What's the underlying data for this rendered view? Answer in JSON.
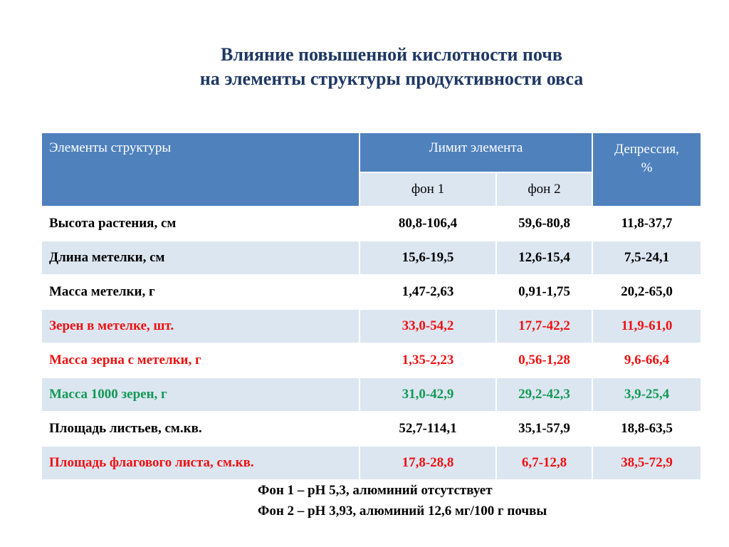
{
  "title": {
    "line1": "Влияние повышенной кислотности почв",
    "line2": "на  элементы структуры продуктивности овса"
  },
  "table": {
    "header": {
      "elements": "Элементы структуры",
      "limit": "Лимит элемента",
      "fon1": "фон 1",
      "fon2": "фон 2",
      "depression_line1": "Депрессия,",
      "depression_line2": "%"
    },
    "rows": [
      {
        "name": "Высота растения, см",
        "fon1": "80,8-106,4",
        "fon2": "59,6-80,8",
        "depression": "11,8-37,7",
        "color": "black"
      },
      {
        "name": "Длина метелки, см",
        "fon1": "15,6-19,5",
        "fon2": "12,6-15,4",
        "depression": "7,5-24,1",
        "color": "black"
      },
      {
        "name": "Масса метелки, г",
        "fon1": "1,47-2,63",
        "fon2": "0,91-1,75",
        "depression": "20,2-65,0",
        "color": "black"
      },
      {
        "name": "Зерен в метелке, шт.",
        "fon1": "33,0-54,2",
        "fon2": "17,7-42,2",
        "depression": "11,9-61,0",
        "color": "red"
      },
      {
        "name": "Масса зерна с метелки, г",
        "fon1": "1,35-2,23",
        "fon2": "0,56-1,28",
        "depression": "9,6-66,4",
        "color": "red"
      },
      {
        "name": "Масса 1000 зерен, г",
        "fon1": "31,0-42,9",
        "fon2": "29,2-42,3",
        "depression": "3,9-25,4",
        "color": "green"
      },
      {
        "name": "Площадь листьев, см.кв.",
        "fon1": "52,7-114,1",
        "fon2": "35,1-57,9",
        "depression": "18,8-63,5",
        "color": "black"
      },
      {
        "name": "Площадь флагового листа,  см.кв.",
        "fon1": "17,8-28,8",
        "fon2": "6,7-12,8",
        "depression": "38,5-72,9",
        "color": "red"
      }
    ]
  },
  "notes": {
    "line1": "Фон 1 – рН 5,3, алюминий отсутствует",
    "line2": "Фон 2 – рН 3,93, алюминий 12,6 мг/100 г почвы"
  },
  "colors": {
    "header_bg": "#4f81bd",
    "stripe_bg": "#dce6f1",
    "title": "#1f3864",
    "red": "#ee1111",
    "green": "#119955"
  }
}
